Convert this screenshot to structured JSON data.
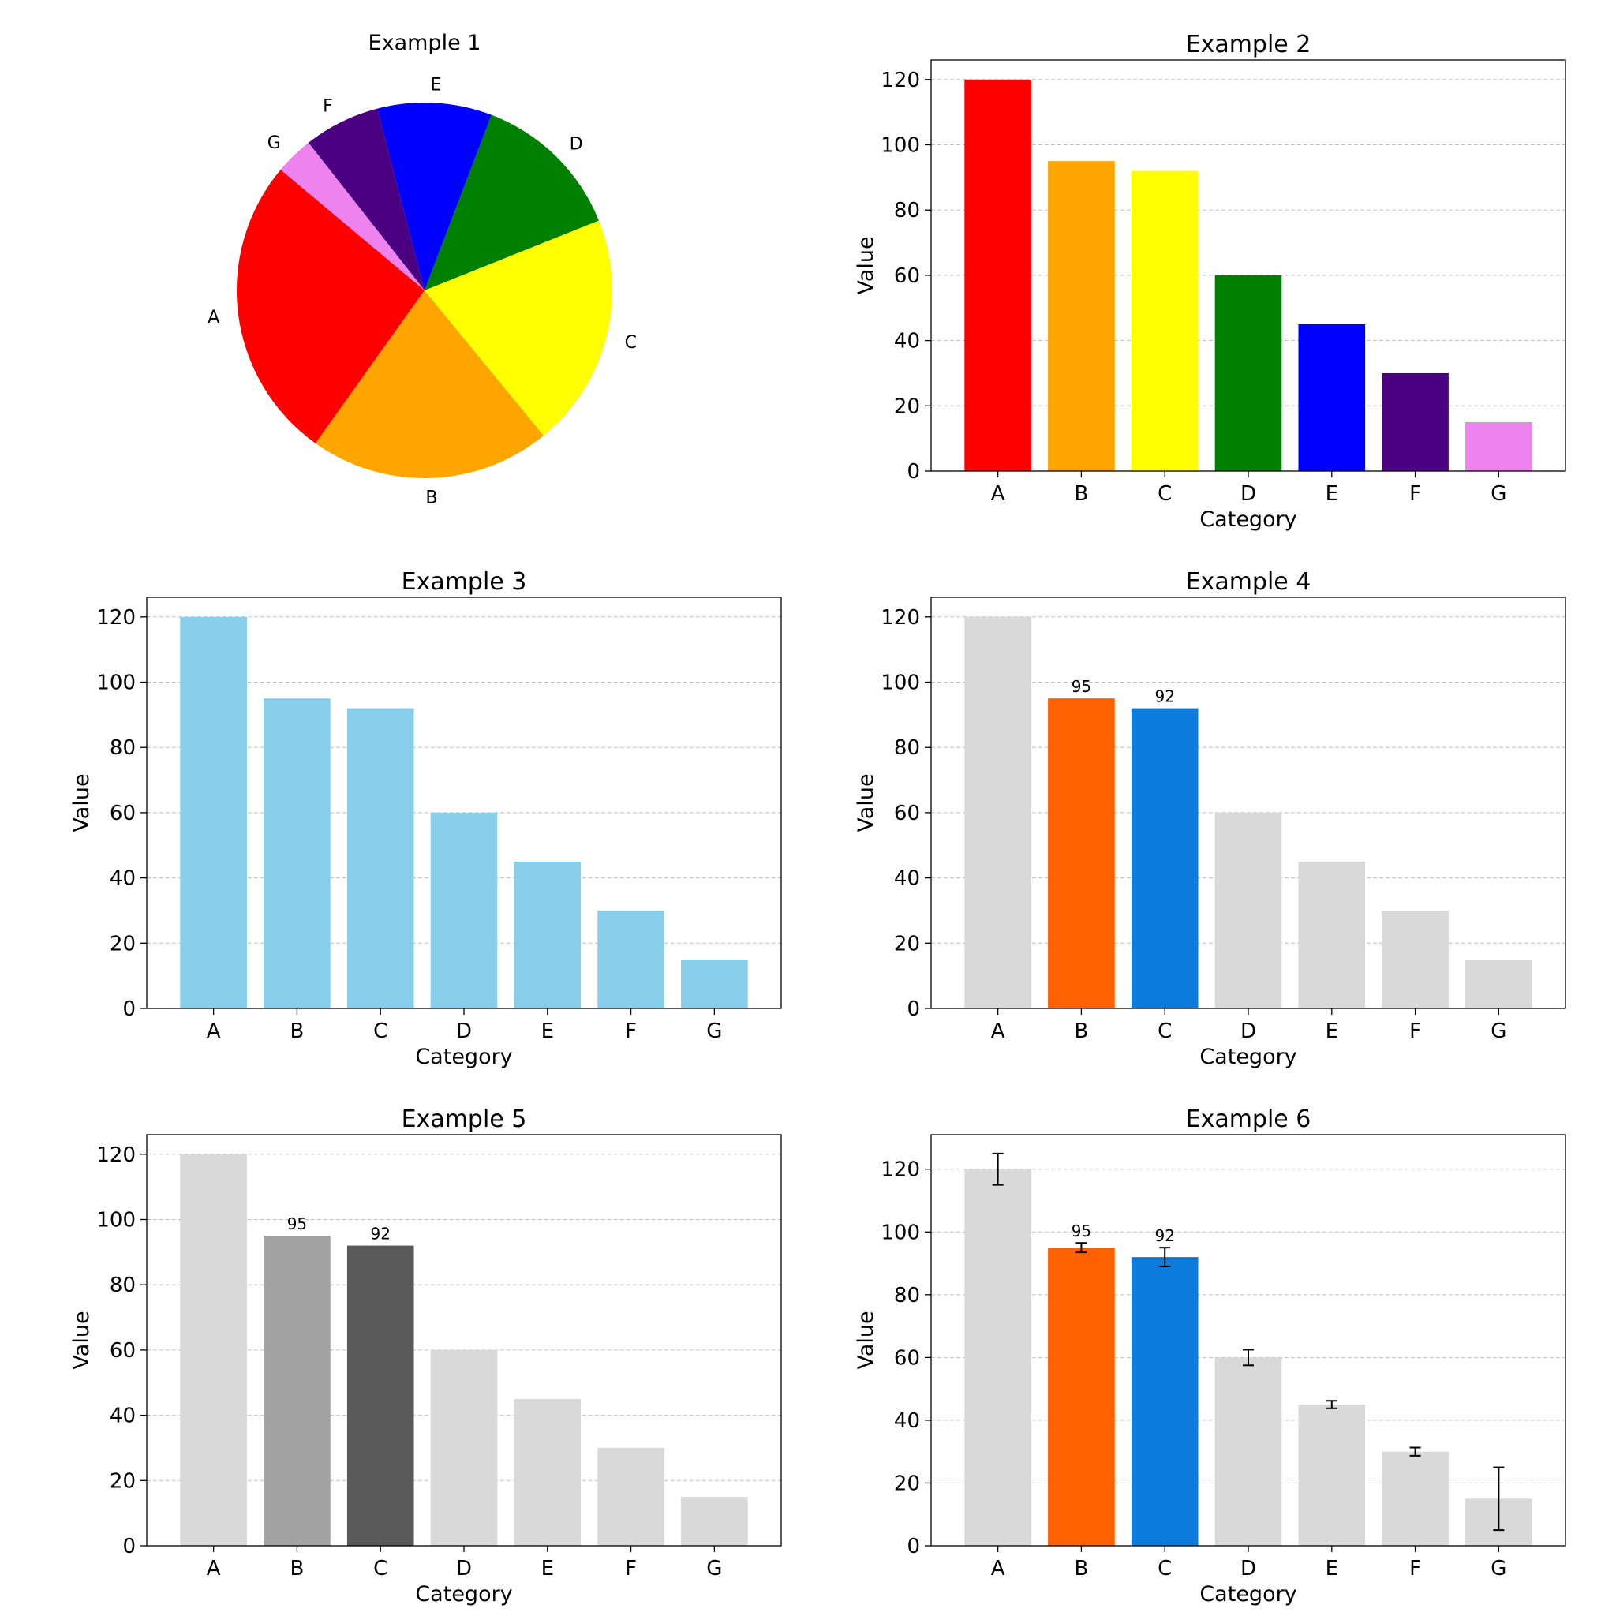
{
  "chart_data": [
    {
      "id": "example-1",
      "type": "pie",
      "title": "Example 1",
      "categories": [
        "A",
        "B",
        "C",
        "D",
        "E",
        "F",
        "G"
      ],
      "values": [
        120,
        95,
        92,
        60,
        45,
        30,
        15
      ],
      "colors": [
        "#ff0000",
        "#ffa500",
        "#ffff00",
        "#008000",
        "#0000ff",
        "#4b0082",
        "#ee82ee"
      ],
      "start_angle_deg": 140,
      "direction": "counterclockwise"
    },
    {
      "id": "example-2",
      "type": "bar",
      "title": "Example 2",
      "xlabel": "Category",
      "ylabel": "Value",
      "categories": [
        "A",
        "B",
        "C",
        "D",
        "E",
        "F",
        "G"
      ],
      "values": [
        120,
        95,
        92,
        60,
        45,
        30,
        15
      ],
      "colors": [
        "#ff0000",
        "#ffa500",
        "#ffff00",
        "#008000",
        "#0000ff",
        "#4b0082",
        "#ee82ee"
      ],
      "ylim": [
        0,
        126
      ],
      "yticks": [
        0,
        20,
        40,
        60,
        80,
        100,
        120
      ],
      "grid": "y",
      "data_labels": {}
    },
    {
      "id": "example-3",
      "type": "bar",
      "title": "Example 3",
      "xlabel": "Category",
      "ylabel": "Value",
      "categories": [
        "A",
        "B",
        "C",
        "D",
        "E",
        "F",
        "G"
      ],
      "values": [
        120,
        95,
        92,
        60,
        45,
        30,
        15
      ],
      "colors": [
        "#87ceeb",
        "#87ceeb",
        "#87ceeb",
        "#87ceeb",
        "#87ceeb",
        "#87ceeb",
        "#87ceeb"
      ],
      "ylim": [
        0,
        126
      ],
      "yticks": [
        0,
        20,
        40,
        60,
        80,
        100,
        120
      ],
      "grid": "y",
      "data_labels": {}
    },
    {
      "id": "example-4",
      "type": "bar",
      "title": "Example 4",
      "xlabel": "Category",
      "ylabel": "Value",
      "categories": [
        "A",
        "B",
        "C",
        "D",
        "E",
        "F",
        "G"
      ],
      "values": [
        120,
        95,
        92,
        60,
        45,
        30,
        15
      ],
      "colors": [
        "#d9d9d9",
        "#ff6000",
        "#0b7bdc",
        "#d9d9d9",
        "#d9d9d9",
        "#d9d9d9",
        "#d9d9d9"
      ],
      "ylim": [
        0,
        126
      ],
      "yticks": [
        0,
        20,
        40,
        60,
        80,
        100,
        120
      ],
      "grid": "y",
      "data_labels": {
        "B": "95",
        "C": "92"
      }
    },
    {
      "id": "example-5",
      "type": "bar",
      "title": "Example 5",
      "xlabel": "Category",
      "ylabel": "Value",
      "categories": [
        "A",
        "B",
        "C",
        "D",
        "E",
        "F",
        "G"
      ],
      "values": [
        120,
        95,
        92,
        60,
        45,
        30,
        15
      ],
      "colors": [
        "#d9d9d9",
        "#a3a3a3",
        "#595959",
        "#d9d9d9",
        "#d9d9d9",
        "#d9d9d9",
        "#d9d9d9"
      ],
      "ylim": [
        0,
        126
      ],
      "yticks": [
        0,
        20,
        40,
        60,
        80,
        100,
        120
      ],
      "grid": "y",
      "data_labels": {
        "B": "95",
        "C": "92"
      }
    },
    {
      "id": "example-6",
      "type": "bar",
      "title": "Example 6",
      "xlabel": "Category",
      "ylabel": "Value",
      "categories": [
        "A",
        "B",
        "C",
        "D",
        "E",
        "F",
        "G"
      ],
      "values": [
        120,
        95,
        92,
        60,
        45,
        30,
        15
      ],
      "errors": [
        5,
        1.5,
        3,
        2.5,
        1.2,
        1.3,
        10
      ],
      "colors": [
        "#d9d9d9",
        "#ff6000",
        "#0b7bdc",
        "#d9d9d9",
        "#d9d9d9",
        "#d9d9d9",
        "#d9d9d9"
      ],
      "ylim": [
        0,
        131
      ],
      "yticks": [
        0,
        20,
        40,
        60,
        80,
        100,
        120
      ],
      "grid": "y",
      "data_labels": {
        "B": "95",
        "C": "92"
      }
    }
  ]
}
